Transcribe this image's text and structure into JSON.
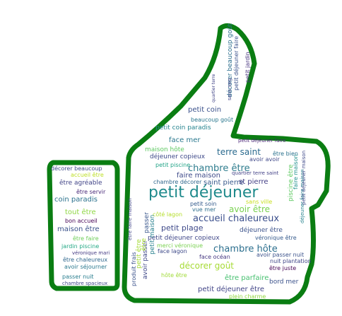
{
  "cloud": {
    "outline_color": "#0a7d12",
    "words": [
      {
        "text": "petit déjeuner",
        "color": "#1f8a8c"
      },
      {
        "text": "chambre hôte",
        "color": "#2c6f8e"
      },
      {
        "text": "accueil chaleureux",
        "color": "#3b4f8c"
      },
      {
        "text": "chambre être",
        "color": "#2f7d8e"
      },
      {
        "text": "terre saint",
        "color": "#2a6a8e"
      },
      {
        "text": "avoir être",
        "color": "#7ad151"
      },
      {
        "text": "décorer goût",
        "color": "#a6db35"
      },
      {
        "text": "petit plage",
        "color": "#3e4989"
      },
      {
        "text": "saint pierre",
        "color": "#38598c"
      },
      {
        "text": "petit coin",
        "color": "#3b518b"
      },
      {
        "text": "tout être",
        "color": "#8fd744"
      },
      {
        "text": "maison être",
        "color": "#3b528b"
      },
      {
        "text": "coin paradis",
        "color": "#2c728e"
      },
      {
        "text": "faire maison",
        "color": "#3e4a89"
      },
      {
        "text": "être parfaire",
        "color": "#46c06f"
      },
      {
        "text": "petit déjeuner être",
        "color": "#414487"
      },
      {
        "text": "face mer",
        "color": "#2a788e"
      },
      {
        "text": "st pierre",
        "color": "#433e85"
      },
      {
        "text": "petit coin paradis",
        "color": "#25838e"
      },
      {
        "text": "maison hôte",
        "color": "#5ec962"
      },
      {
        "text": "déjeuner copieux",
        "color": "#3e4a89"
      },
      {
        "text": "petit piscine",
        "color": "#20a386"
      },
      {
        "text": "chambre décorer",
        "color": "#31688e"
      },
      {
        "text": "accueil être",
        "color": "#bddf26"
      },
      {
        "text": "être agréable",
        "color": "#414487"
      },
      {
        "text": "jardin piscine",
        "color": "#22a884"
      },
      {
        "text": "être servir",
        "color": "#482878"
      },
      {
        "text": "bon accueil",
        "color": "#440154"
      },
      {
        "text": "être faire",
        "color": "#6ece58"
      },
      {
        "text": "véronique mari",
        "color": "#443983"
      },
      {
        "text": "être chaleureux",
        "color": "#31688e"
      },
      {
        "text": "avoir séjourner",
        "color": "#2a788e"
      },
      {
        "text": "passer nuit",
        "color": "#287d8e"
      },
      {
        "text": "chambre spacieux",
        "color": "#3f4889"
      },
      {
        "text": "décorer beaucoup",
        "color": "#3e4a89"
      },
      {
        "text": "petit soin",
        "color": "#365c8d"
      },
      {
        "text": "vue mer",
        "color": "#2e6e8e"
      },
      {
        "text": "côté lagon",
        "color": "#b5de2b"
      },
      {
        "text": "petit déjeuner copieux",
        "color": "#3f4788"
      },
      {
        "text": "face lagon",
        "color": "#3e4a89"
      },
      {
        "text": "merci véronique",
        "color": "#7ad151"
      },
      {
        "text": "face océan",
        "color": "#453781"
      },
      {
        "text": "déjeuner être",
        "color": "#3b528b"
      },
      {
        "text": "véronique être",
        "color": "#375b8d"
      },
      {
        "text": "petit déjeuner faire",
        "color": "#482475"
      },
      {
        "text": "être juste",
        "color": "#440154"
      },
      {
        "text": "bord mer",
        "color": "#3b528b"
      },
      {
        "text": "plein charme",
        "color": "#93d741"
      },
      {
        "text": "hôte être",
        "color": "#a0da39"
      },
      {
        "text": "quartier terre saint",
        "color": "#424086"
      },
      {
        "text": "être bien",
        "color": "#2c728e"
      },
      {
        "text": "avoir avoir",
        "color": "#3f4889"
      },
      {
        "text": "sans ville",
        "color": "#c8e020"
      },
      {
        "text": "nuit plantation",
        "color": "#404688"
      },
      {
        "text": "avoir passer nuit",
        "color": "#3b528b"
      },
      {
        "text": "beaucoup goût",
        "color": "#2a778e"
      },
      {
        "text": "décorer beaucoup goût",
        "color": "#2e6f8e"
      },
      {
        "text": "petit déjeuner faire",
        "color": "#3b528b"
      },
      {
        "text": "petit jardin",
        "color": "#46337e"
      },
      {
        "text": "sans neg",
        "color": "#414487"
      },
      {
        "text": "piscine être",
        "color": "#5ec962"
      },
      {
        "text": "faire maison",
        "color": "#21918c"
      },
      {
        "text": "déjeuner faire maison",
        "color": "#26828e"
      },
      {
        "text": "produit frais",
        "color": "#3b528b"
      },
      {
        "text": "petit être",
        "color": "#a5db36"
      },
      {
        "text": "avoir passer",
        "color": "#3f4889"
      },
      {
        "text": "petit maison",
        "color": "#27808e"
      },
      {
        "text": "être faire maison",
        "color": "#404588"
      },
      {
        "text": "être",
        "color": "#a8db34"
      },
      {
        "text": "passer",
        "color": "#39568c"
      },
      {
        "text": "quartier terre",
        "color": "#414487"
      },
      {
        "text": "petit déjeuner maison",
        "color": "#3e4989"
      }
    ]
  }
}
